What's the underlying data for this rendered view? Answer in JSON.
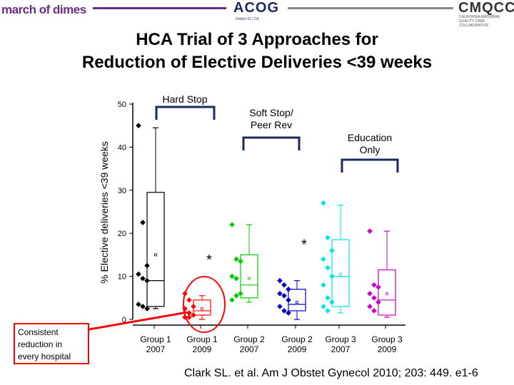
{
  "header": {
    "logo_left": "march of dimes",
    "logo_center": "ACOG",
    "logo_center_sub": "District IX | CA",
    "logo_right": "CMQCC",
    "logo_right_sub": "CALIFORNIA MATERNAL QUALITY CARE COLLABORATIVE"
  },
  "title_line1": "HCA Trial of 3 Approaches for",
  "title_line2": "Reduction of Elective Deliveries <39 weeks",
  "group_labels": {
    "hard_stop": "Hard Stop",
    "soft_stop_line1": "Soft Stop/",
    "soft_stop_line2": "Peer Rev",
    "education_line1": "Education",
    "education_line2": "Only"
  },
  "callout": "Consistent reduction in every hospital",
  "citation": "Clark SL. et al. Am J Obstet Gynecol 2010; 203: 449. e1-6",
  "colors": {
    "series": [
      "#000000",
      "#ff0000",
      "#00cc00",
      "#0000cc",
      "#00e5e5",
      "#cc00cc"
    ],
    "header_line_left": "#6a2c83",
    "header_line_right": "#888888",
    "callout_border": "#ff0000"
  },
  "chart_data": {
    "type": "box",
    "ylabel": "% Elective deliveries <39 weeks",
    "ylim": [
      0,
      50
    ],
    "yticks": [
      0,
      10,
      20,
      30,
      40,
      50
    ],
    "significance_marker": "*",
    "categories": [
      {
        "line1": "Group 1",
        "line2": "2007"
      },
      {
        "line1": "Group 1",
        "line2": "2009"
      },
      {
        "line1": "Group 2",
        "line2": "2007"
      },
      {
        "line1": "Group 2",
        "line2": "2009"
      },
      {
        "line1": "Group 3",
        "line2": "2007"
      },
      {
        "line1": "Group 3",
        "line2": "2009"
      }
    ],
    "series": [
      {
        "points": [
          45,
          22.5,
          12.5,
          10.5,
          9.5,
          9,
          3.5,
          3,
          2.5
        ],
        "box": {
          "min": 2.5,
          "q1": 3,
          "median": 9,
          "mean": 15,
          "q3": 29.5,
          "max": 44.5
        },
        "significant": false
      },
      {
        "points": [
          6,
          4.5,
          3,
          2.5,
          1.5,
          1,
          0.5,
          0.5
        ],
        "box": {
          "min": 0,
          "q1": 1,
          "median": 2,
          "mean": 2.5,
          "q3": 4.5,
          "max": 5.5
        },
        "significant": true
      },
      {
        "points": [
          22,
          14,
          13.5,
          10,
          9.5,
          6,
          4.5,
          5.5
        ],
        "box": {
          "min": 4,
          "q1": 5,
          "median": 8,
          "mean": 9.5,
          "q3": 15,
          "max": 22
        },
        "significant": false
      },
      {
        "points": [
          9,
          8,
          7,
          6,
          5.5,
          4.5,
          3,
          2,
          1.5
        ],
        "box": {
          "min": 0,
          "q1": 2,
          "median": 3.5,
          "mean": 4,
          "q3": 7,
          "max": 9
        },
        "significant": true
      },
      {
        "points": [
          27,
          19,
          16,
          14,
          12,
          10,
          8,
          5,
          4,
          3,
          2
        ],
        "box": {
          "min": 1.5,
          "q1": 3,
          "median": 10,
          "mean": 10.5,
          "q3": 18.5,
          "max": 26.5
        },
        "significant": false
      },
      {
        "points": [
          20.5,
          8,
          7.5,
          6,
          5,
          4,
          3,
          2
        ],
        "box": {
          "min": 0.5,
          "q1": 1,
          "median": 4.5,
          "mean": 6,
          "q3": 11.5,
          "max": 20.5
        },
        "significant": false
      }
    ]
  }
}
